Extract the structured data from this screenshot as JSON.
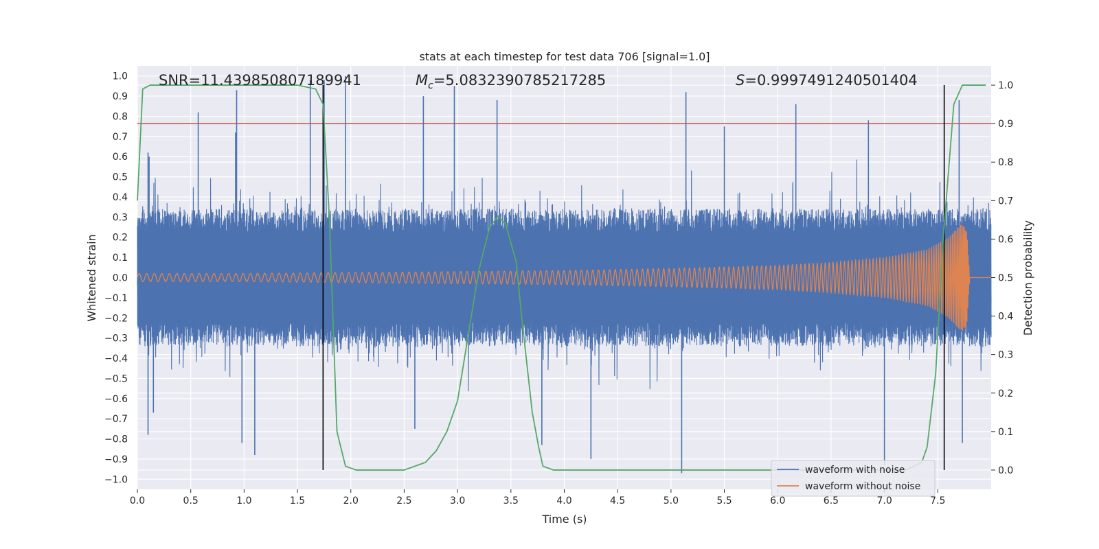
{
  "chart_data": {
    "type": "line",
    "title": "stats at each timestep for test data 706 [signal=1.0]",
    "xlabel": "Time (s)",
    "ylabel": "Whitened strain",
    "y2label": "Detection probability",
    "xlim": [
      0.0,
      8.0
    ],
    "ylim": [
      -1.05,
      1.05
    ],
    "y2lim": [
      -0.05,
      1.05
    ],
    "x_ticks": [
      0.0,
      0.5,
      1.0,
      1.5,
      2.0,
      2.5,
      3.0,
      3.5,
      4.0,
      4.5,
      5.0,
      5.5,
      6.0,
      6.5,
      7.0,
      7.5
    ],
    "x_tick_labels": [
      "0.0",
      "0.5",
      "1.0",
      "1.5",
      "2.0",
      "2.5",
      "3.0",
      "3.5",
      "4.0",
      "4.5",
      "5.0",
      "5.5",
      "6.0",
      "6.5",
      "7.0",
      "7.5"
    ],
    "y_ticks": [
      1.0,
      0.9,
      0.8,
      0.7,
      0.6,
      0.5,
      0.4,
      0.3,
      0.2,
      0.1,
      0.0,
      -0.1,
      -0.2,
      -0.3,
      -0.4,
      -0.5,
      -0.6,
      -0.7,
      -0.8,
      -0.9,
      -1.0
    ],
    "y_tick_labels": [
      "1.0",
      "0.9",
      "0.8",
      "0.7",
      "0.6",
      "0.5",
      "0.4",
      "0.3",
      "0.2",
      "0.1",
      "0.0",
      "−0.1",
      "−0.2",
      "−0.3",
      "−0.4",
      "−0.5",
      "−0.6",
      "−0.7",
      "−0.8",
      "−0.9",
      "−1.0"
    ],
    "y2_ticks": [
      1.0,
      0.9,
      0.8,
      0.7,
      0.6,
      0.5,
      0.4,
      0.3,
      0.2,
      0.1,
      0.0
    ],
    "y2_tick_labels": [
      "1.0",
      "0.9",
      "0.8",
      "0.7",
      "0.6",
      "0.5",
      "0.4",
      "0.3",
      "0.2",
      "0.1",
      "0.0"
    ],
    "grid": true,
    "legend_position": "bottom-right",
    "annotations": {
      "snr": "SNR=11.439850807189941",
      "mc_symbol": "M",
      "mc_sub": "c",
      "mc_value": "=5.0832390785217285",
      "s_symbol": "S",
      "s_value": "=0.9997491240501404"
    },
    "threshold_line": {
      "axis": "y2",
      "value": 0.9,
      "color": "#c44e52"
    },
    "vertical_markers": {
      "x": [
        1.74,
        7.56
      ],
      "color": "#000000"
    },
    "noise_waveform": {
      "name": "waveform with noise",
      "color": "#4c72b0",
      "x_range": [
        0.0,
        8.0
      ],
      "envelope_typical": 0.45,
      "peaks": [
        {
          "x": 0.1,
          "y": 0.62
        },
        {
          "x": 0.15,
          "y": -0.67
        },
        {
          "x": 0.11,
          "y": 0.6
        },
        {
          "x": 0.1,
          "y": -0.78
        },
        {
          "x": 0.57,
          "y": 0.82
        },
        {
          "x": 0.92,
          "y": 0.72
        },
        {
          "x": 0.93,
          "y": 0.93
        },
        {
          "x": 0.98,
          "y": -0.82
        },
        {
          "x": 1.1,
          "y": -0.88
        },
        {
          "x": 1.62,
          "y": 0.98
        },
        {
          "x": 1.75,
          "y": 0.98
        },
        {
          "x": 1.95,
          "y": 1.0
        },
        {
          "x": 2.6,
          "y": -0.75
        },
        {
          "x": 2.68,
          "y": 0.9
        },
        {
          "x": 2.97,
          "y": 0.95
        },
        {
          "x": 3.37,
          "y": 0.88
        },
        {
          "x": 3.79,
          "y": -0.83
        },
        {
          "x": 4.25,
          "y": -0.9
        },
        {
          "x": 5.1,
          "y": -0.97
        },
        {
          "x": 5.14,
          "y": 0.92
        },
        {
          "x": 5.5,
          "y": 0.75
        },
        {
          "x": 6.17,
          "y": 0.86
        },
        {
          "x": 6.85,
          "y": 0.78
        },
        {
          "x": 7.0,
          "y": -0.93
        },
        {
          "x": 7.7,
          "y": 0.88
        },
        {
          "x": 7.73,
          "y": -0.82
        }
      ]
    },
    "clean_waveform": {
      "name": "waveform without noise",
      "color": "#dd8452",
      "amplitude": [
        [
          0.0,
          0.02
        ],
        [
          1.0,
          0.02
        ],
        [
          2.0,
          0.025
        ],
        [
          3.0,
          0.03
        ],
        [
          4.0,
          0.035
        ],
        [
          5.0,
          0.045
        ],
        [
          6.0,
          0.06
        ],
        [
          6.5,
          0.075
        ],
        [
          7.0,
          0.1
        ],
        [
          7.4,
          0.14
        ],
        [
          7.6,
          0.2
        ],
        [
          7.72,
          0.27
        ],
        [
          7.77,
          0.25
        ],
        [
          7.8,
          0.0
        ],
        [
          8.0,
          0.0
        ]
      ]
    },
    "probability_series": {
      "name": "detection probability",
      "color": "#55a868",
      "axis": "y2",
      "points": [
        [
          0.0,
          0.7
        ],
        [
          0.05,
          0.99
        ],
        [
          0.12,
          1.0
        ],
        [
          1.5,
          1.0
        ],
        [
          1.67,
          0.99
        ],
        [
          1.74,
          0.95
        ],
        [
          1.8,
          0.65
        ],
        [
          1.87,
          0.1
        ],
        [
          1.95,
          0.01
        ],
        [
          2.05,
          0.0
        ],
        [
          2.5,
          0.0
        ],
        [
          2.7,
          0.02
        ],
        [
          2.8,
          0.05
        ],
        [
          2.9,
          0.1
        ],
        [
          3.0,
          0.18
        ],
        [
          3.1,
          0.35
        ],
        [
          3.2,
          0.52
        ],
        [
          3.3,
          0.63
        ],
        [
          3.38,
          0.66
        ],
        [
          3.45,
          0.64
        ],
        [
          3.55,
          0.54
        ],
        [
          3.6,
          0.4
        ],
        [
          3.7,
          0.15
        ],
        [
          3.76,
          0.06
        ],
        [
          3.8,
          0.01
        ],
        [
          3.9,
          0.0
        ],
        [
          7.2,
          0.0
        ],
        [
          7.35,
          0.02
        ],
        [
          7.4,
          0.06
        ],
        [
          7.48,
          0.25
        ],
        [
          7.55,
          0.6
        ],
        [
          7.65,
          0.95
        ],
        [
          7.73,
          1.0
        ],
        [
          7.95,
          1.0
        ]
      ]
    },
    "legend": [
      "waveform with noise",
      "waveform without noise"
    ]
  }
}
